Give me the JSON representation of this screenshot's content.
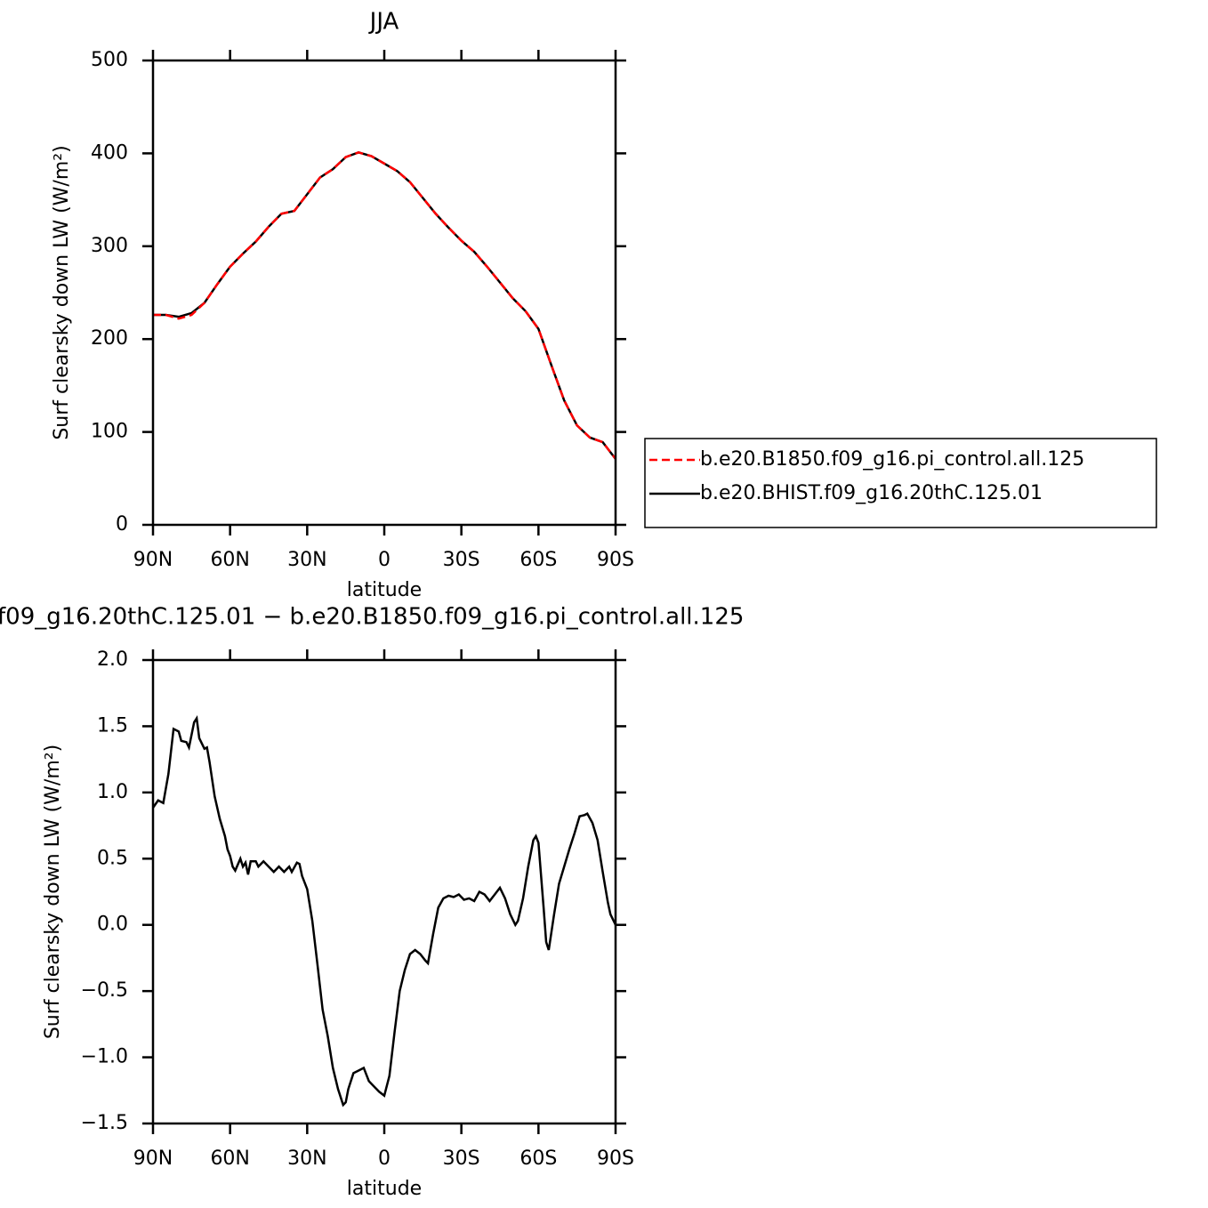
{
  "chart_data": [
    {
      "type": "line",
      "title": "JJA",
      "xlabel": "latitude",
      "ylabel": "Surf clearsky down LW (W/m²)",
      "x": [
        90,
        85,
        80,
        75,
        70,
        65,
        60,
        55,
        50,
        45,
        40,
        35,
        30,
        25,
        20,
        15,
        10,
        5,
        0,
        -5,
        -10,
        -15,
        -20,
        -25,
        -30,
        -35,
        -40,
        -45,
        -50,
        -55,
        -60,
        -65,
        -70,
        -75,
        -80,
        -85,
        -90
      ],
      "series": [
        {
          "name": "b.e20.B1850.f09_g16.pi_control.all.125",
          "color": "#ff0000",
          "dashed": true,
          "values": [
            226,
            226,
            222,
            226,
            239,
            259,
            278,
            292,
            305,
            321,
            335,
            338,
            356,
            374,
            383,
            396,
            401,
            397,
            389,
            381,
            369,
            352,
            335,
            320,
            306,
            294,
            278,
            261,
            244,
            230,
            211,
            172,
            134,
            107,
            94,
            89,
            71
          ]
        },
        {
          "name": "b.e20.BHIST.f09_g16.20thC.125.01",
          "color": "#000000",
          "dashed": false,
          "values": [
            226,
            226,
            224,
            228,
            239,
            259,
            278,
            292,
            305,
            321,
            335,
            338,
            356,
            374,
            383,
            396,
            401,
            397,
            389,
            381,
            369,
            352,
            335,
            320,
            306,
            294,
            278,
            261,
            244,
            230,
            211,
            172,
            134,
            107,
            94,
            89,
            71
          ]
        }
      ],
      "xlim": [
        90,
        -90
      ],
      "xticks": [
        {
          "value": 90,
          "label": "90N"
        },
        {
          "value": 60,
          "label": "60N"
        },
        {
          "value": 30,
          "label": "30N"
        },
        0,
        {
          "value": -30,
          "label": "30S"
        },
        {
          "value": -60,
          "label": "60S"
        },
        {
          "value": -90,
          "label": "90S"
        }
      ],
      "ylim": [
        0,
        500
      ],
      "yticks": [
        0,
        100,
        200,
        300,
        400,
        500
      ],
      "legend": "right"
    },
    {
      "type": "line",
      "title": "f09_g16.20thC.125.01 − b.e20.B1850.f09_g16.pi_control.all.125",
      "xlabel": "latitude",
      "ylabel": "Surf clearsky down LW (W/m²)",
      "x": [
        90,
        88,
        86,
        84,
        82,
        80,
        79,
        77,
        76,
        74,
        73,
        72,
        70,
        69,
        68,
        66,
        64,
        62,
        61,
        60,
        59,
        58,
        56,
        55,
        54,
        53,
        52,
        50,
        49,
        47,
        45,
        43,
        41,
        39,
        37,
        36,
        34,
        33,
        32,
        30,
        28,
        26,
        24,
        22,
        20,
        18,
        16,
        15,
        14,
        12,
        10,
        8,
        6,
        4,
        2,
        0,
        -2,
        -4,
        -6,
        -8,
        -10,
        -12,
        -14,
        -16,
        -17,
        -19,
        -21,
        -23,
        -25,
        -27,
        -29,
        -31,
        -33,
        -35,
        -37,
        -39,
        -41,
        -43,
        -45,
        -47,
        -49,
        -51,
        -52,
        -54,
        -56,
        -58,
        -59,
        -60,
        -62,
        -63,
        -64,
        -66,
        -68,
        -70,
        -72,
        -74,
        -76,
        -78,
        -79,
        -81,
        -83,
        -85,
        -87,
        -88,
        -90
      ],
      "series": [
        {
          "color": "#000000",
          "dashed": false,
          "values": [
            0.885,
            0.94,
            0.92,
            1.14,
            1.48,
            1.46,
            1.39,
            1.38,
            1.34,
            1.53,
            1.56,
            1.41,
            1.33,
            1.34,
            1.23,
            0.97,
            0.8,
            0.67,
            0.57,
            0.52,
            0.44,
            0.41,
            0.5,
            0.44,
            0.47,
            0.38,
            0.48,
            0.48,
            0.44,
            0.48,
            0.44,
            0.4,
            0.44,
            0.4,
            0.44,
            0.4,
            0.47,
            0.46,
            0.37,
            0.27,
            0.03,
            -0.3,
            -0.64,
            -0.84,
            -1.08,
            -1.24,
            -1.36,
            -1.34,
            -1.24,
            -1.12,
            -1.1,
            -1.08,
            -1.18,
            -1.22,
            -1.26,
            -1.29,
            -1.14,
            -0.81,
            -0.5,
            -0.34,
            -0.22,
            -0.19,
            -0.22,
            -0.27,
            -0.29,
            -0.07,
            0.13,
            0.2,
            0.22,
            0.21,
            0.23,
            0.19,
            0.2,
            0.18,
            0.25,
            0.23,
            0.18,
            0.23,
            0.28,
            0.2,
            0.08,
            0,
            0.03,
            0.2,
            0.44,
            0.64,
            0.67,
            0.62,
            0.13,
            -0.13,
            -0.19,
            0.07,
            0.31,
            0.44,
            0.57,
            0.69,
            0.82,
            0.83,
            0.84,
            0.77,
            0.64,
            0.4,
            0.17,
            0.08,
            0
          ]
        }
      ],
      "xlim": [
        90,
        -90
      ],
      "xticks": [
        {
          "value": 90,
          "label": "90N"
        },
        {
          "value": 60,
          "label": "60N"
        },
        {
          "value": 30,
          "label": "30N"
        },
        0,
        {
          "value": -30,
          "label": "30S"
        },
        {
          "value": -60,
          "label": "60S"
        },
        {
          "value": -90,
          "label": "90S"
        }
      ],
      "ylim": [
        -1.5,
        2.0
      ],
      "yticks": [
        {
          "value": -1.5,
          "label": "−1.5"
        },
        {
          "value": -1.0,
          "label": "−1.0"
        },
        {
          "value": -0.5,
          "label": "−0.5"
        },
        {
          "value": 0,
          "label": "0.0"
        },
        {
          "value": 0.5,
          "label": "0.5"
        },
        {
          "value": 1.0,
          "label": "1.0"
        },
        {
          "value": 1.5,
          "label": "1.5"
        },
        {
          "value": 2.0,
          "label": "2.0"
        }
      ]
    }
  ]
}
